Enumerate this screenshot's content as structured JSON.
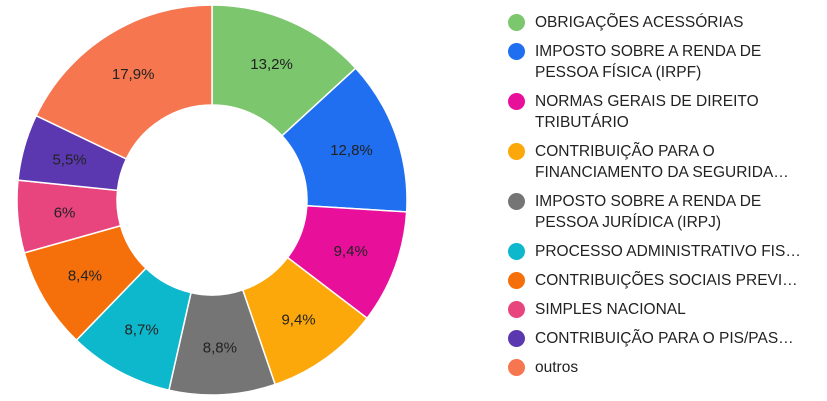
{
  "chart_data": {
    "type": "pie",
    "donut": true,
    "legend_position": "right",
    "slices": [
      {
        "label": "OBRIGAÇÕES ACESSÓRIAS",
        "value": 13.2,
        "value_label": "13,2%",
        "color": "#7cc66e"
      },
      {
        "label": "IMPOSTO SOBRE A RENDA DE\nPESSOA FÍSICA (IRPF)",
        "value": 12.8,
        "value_label": "12,8%",
        "color": "#1f6ff0"
      },
      {
        "label": "NORMAS GERAIS DE DIREITO\nTRIBUTÁRIO",
        "value": 9.4,
        "value_label": "9,4%",
        "color": "#e80f9b"
      },
      {
        "label": "CONTRIBUIÇÃO PARA O\nFINANCIAMENTO DA SEGURIDA…",
        "value": 9.4,
        "value_label": "9,4%",
        "color": "#fca80a"
      },
      {
        "label": "IMPOSTO SOBRE A RENDA DE\nPESSOA JURÍDICA (IRPJ)",
        "value": 8.8,
        "value_label": "8,8%",
        "color": "#757575"
      },
      {
        "label": "PROCESSO ADMINISTRATIVO FIS…",
        "value": 8.7,
        "value_label": "8,7%",
        "color": "#0eb8cc"
      },
      {
        "label": "CONTRIBUIÇÕES SOCIAIS PREVI…",
        "value": 8.4,
        "value_label": "8,4%",
        "color": "#f5700a"
      },
      {
        "label": "SIMPLES NACIONAL",
        "value": 6.0,
        "value_label": "6%",
        "color": "#e8457f"
      },
      {
        "label": "CONTRIBUIÇÃO PARA O PIS/PAS…",
        "value": 5.5,
        "value_label": "5,5%",
        "color": "#5c38b0"
      },
      {
        "label": "outros",
        "value": 17.9,
        "value_label": "17,9%",
        "color": "#f67650"
      }
    ]
  }
}
